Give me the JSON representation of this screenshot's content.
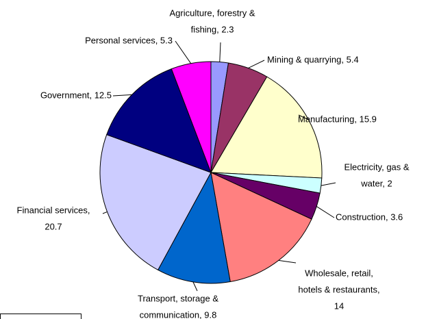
{
  "chart_data": {
    "type": "pie",
    "labels": [
      [
        "Agriculture, forestry &",
        "fishing, 2.3"
      ],
      [
        "Mining & quarrying,  5.4"
      ],
      [
        "Manufacturing, 15.9"
      ],
      [
        "Electricity, gas &",
        "water, 2"
      ],
      [
        "Construction, 3.6"
      ],
      [
        "Wholesale, retail,",
        "hotels & restaurants,",
        "14"
      ],
      [
        "Transport, storage &",
        "communication, 9.8"
      ],
      [
        "Financial services,",
        "20.7"
      ],
      [
        "Government, 12.5"
      ],
      [
        "Personal services, 5.3"
      ]
    ],
    "values": [
      2.3,
      5.4,
      15.9,
      2,
      3.6,
      14,
      9.8,
      20.7,
      12.5,
      5.3
    ],
    "colors": [
      "#9999ff",
      "#993366",
      "#ffffcc",
      "#ccffff",
      "#660066",
      "#ff8080",
      "#0066cc",
      "#ccccff",
      "#000080",
      "#ff00ff"
    ]
  }
}
